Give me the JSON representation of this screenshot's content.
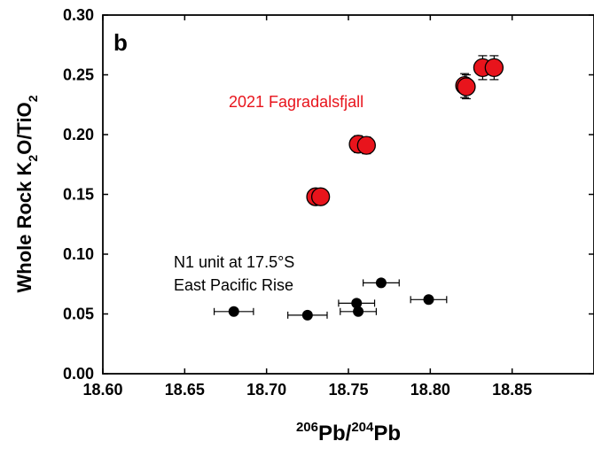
{
  "chart_data": {
    "type": "scatter",
    "panel_label": "b",
    "xlabel": {
      "sup1": "206",
      "main1": "Pb/",
      "sup2": "204",
      "main2": "Pb"
    },
    "ylabel": {
      "main": "Whole Rock K",
      "sub1": "2",
      "mid": "O/TiO",
      "sub2": "2"
    },
    "xlim": [
      18.6,
      18.9
    ],
    "ylim": [
      0.0,
      0.3
    ],
    "xticks": [
      "18.60",
      "18.65",
      "18.70",
      "18.75",
      "18.80",
      "18.85"
    ],
    "yticks": [
      "0.00",
      "0.05",
      "0.10",
      "0.15",
      "0.20",
      "0.25",
      "0.30"
    ],
    "grid": false,
    "annotations": [
      {
        "text": "2021 Fagradalsfjall",
        "color": "#e8141c"
      },
      {
        "text": "N1 unit at 17.5°S",
        "color": "#000000"
      },
      {
        "text": "East Pacific Rise",
        "color": "#000000"
      }
    ],
    "series": [
      {
        "color": "#e8141c",
        "marker": "large-circle",
        "points": [
          {
            "x": 18.73,
            "y": 0.148,
            "yerr": 0.002
          },
          {
            "x": 18.733,
            "y": 0.148,
            "yerr": 0.002
          },
          {
            "x": 18.756,
            "y": 0.192,
            "yerr": 0.007
          },
          {
            "x": 18.761,
            "y": 0.191,
            "yerr": 0.007
          },
          {
            "x": 18.821,
            "y": 0.241,
            "yerr": 0.01
          },
          {
            "x": 18.822,
            "y": 0.24,
            "yerr": 0.01
          },
          {
            "x": 18.832,
            "y": 0.256,
            "yerr": 0.01
          },
          {
            "x": 18.839,
            "y": 0.256,
            "yerr": 0.01
          }
        ]
      },
      {
        "color": "#000000",
        "marker": "small-circle",
        "points": [
          {
            "x": 18.68,
            "y": 0.052,
            "xerr": 0.012
          },
          {
            "x": 18.725,
            "y": 0.049,
            "xerr": 0.012
          },
          {
            "x": 18.755,
            "y": 0.059,
            "xerr": 0.011
          },
          {
            "x": 18.756,
            "y": 0.052,
            "xerr": 0.011
          },
          {
            "x": 18.77,
            "y": 0.076,
            "xerr": 0.011
          },
          {
            "x": 18.799,
            "y": 0.062,
            "xerr": 0.011
          }
        ]
      }
    ]
  }
}
